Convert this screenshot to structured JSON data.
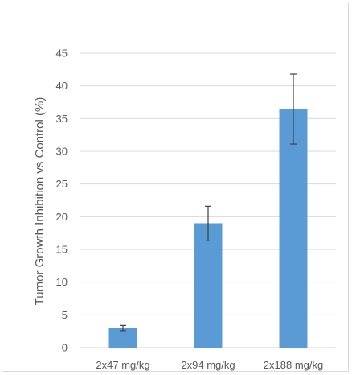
{
  "chart_data": {
    "type": "bar",
    "title": "",
    "xlabel": "",
    "ylabel": "Tumor Growth Inhibition vs Control (%)",
    "categories": [
      "2x47 mg/kg",
      "2x94 mg/kg",
      "2x188 mg/kg"
    ],
    "series": [
      {
        "values": [
          3.0,
          19.0,
          36.4
        ],
        "error_low": [
          2.6,
          16.3,
          31.1
        ],
        "error_high": [
          3.4,
          21.6,
          41.8
        ]
      }
    ],
    "ylim": [
      0,
      45
    ],
    "yticks": [
      "0",
      "5",
      "10",
      "15",
      "20",
      "25",
      "30",
      "35",
      "40",
      "45"
    ],
    "grid": true,
    "legend": "none",
    "bar_color": "#5b9bd5",
    "grid_color": "#d9d9d9",
    "error_bar_color": "#404040"
  }
}
